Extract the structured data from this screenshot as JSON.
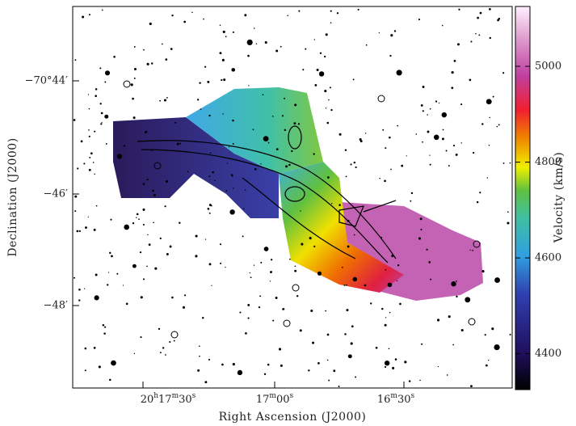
{
  "axes": {
    "x_label": "Right Ascension (J2000)",
    "y_label": "Declination (J2000)",
    "x_ticks": [
      "20h17m30s",
      "17m00s",
      "16m30s"
    ],
    "y_ticks": [
      "−70°44′",
      "−46′",
      "−48′"
    ]
  },
  "colorbar": {
    "label": "Velocity (km/s)",
    "range": [
      4325,
      5125
    ],
    "ticks": [
      4400,
      4600,
      4800,
      5000
    ]
  }
}
